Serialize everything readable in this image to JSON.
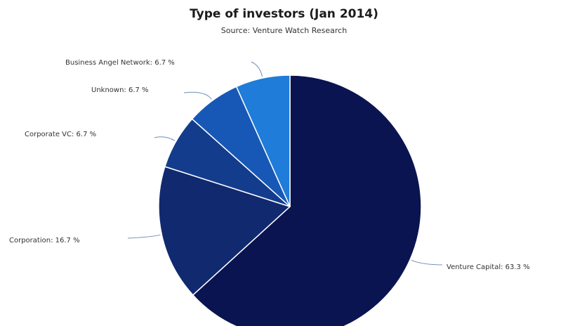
{
  "chart_data": {
    "type": "pie",
    "title": "Type of investors (Jan 2014)",
    "subtitle": "Source: Venture Watch Research",
    "slices": [
      {
        "name": "Venture Capital",
        "value": 63.3,
        "label": "Venture Capital: 63.3 %",
        "color": "#0a1450"
      },
      {
        "name": "Corporation",
        "value": 16.7,
        "label": "Corporation: 16.7 %",
        "color": "#11296e"
      },
      {
        "name": "Corporate VC",
        "value": 6.7,
        "label": "Corporate VC: 6.7 %",
        "color": "#133d8c"
      },
      {
        "name": "Unknown",
        "value": 6.7,
        "label": "Unknown: 6.7 %",
        "color": "#1758b7"
      },
      {
        "name": "Business Angel Network",
        "value": 6.7,
        "label": "Business Angel Network: 6.7 %",
        "color": "#1f7cd8"
      }
    ],
    "start_angle": "12 o'clock",
    "direction": "clockwise",
    "legend": "none"
  },
  "colors": {
    "background": "#ffffff",
    "separator": "#ffffff",
    "leader_line": "#6f8fb8"
  }
}
